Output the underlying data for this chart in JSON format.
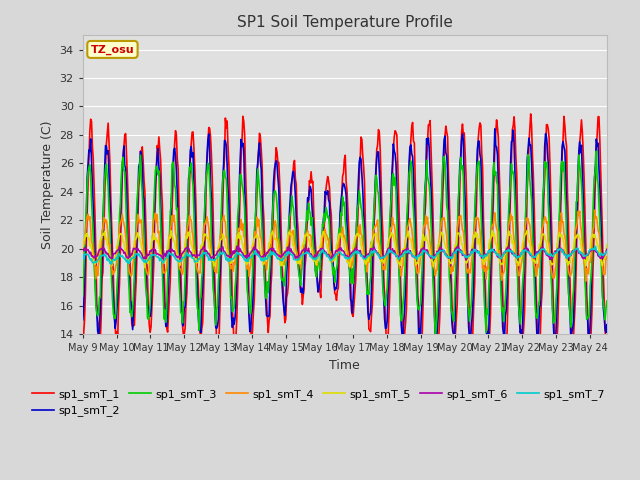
{
  "title": "SP1 Soil Temperature Profile",
  "xlabel": "Time",
  "ylabel": "Soil Temperature (C)",
  "ylim": [
    14,
    35
  ],
  "yticks": [
    14,
    16,
    18,
    20,
    22,
    24,
    26,
    28,
    30,
    32,
    34
  ],
  "annotation_text": "TZ_osu",
  "annotation_color": "#cc0000",
  "annotation_bg": "#ffffcc",
  "annotation_border": "#bb9900",
  "series_colors": {
    "sp1_smT_1": "#ff0000",
    "sp1_smT_2": "#0000cc",
    "sp1_smT_3": "#00cc00",
    "sp1_smT_4": "#ff8800",
    "sp1_smT_5": "#dddd00",
    "sp1_smT_6": "#aa00aa",
    "sp1_smT_7": "#00cccc"
  },
  "bg_color": "#d8d8d8",
  "plot_bg": "#e0e0e0",
  "grid_color": "#ffffff",
  "n_days": 15.5,
  "start_day": 9,
  "figsize": [
    6.4,
    4.8
  ],
  "dpi": 100
}
